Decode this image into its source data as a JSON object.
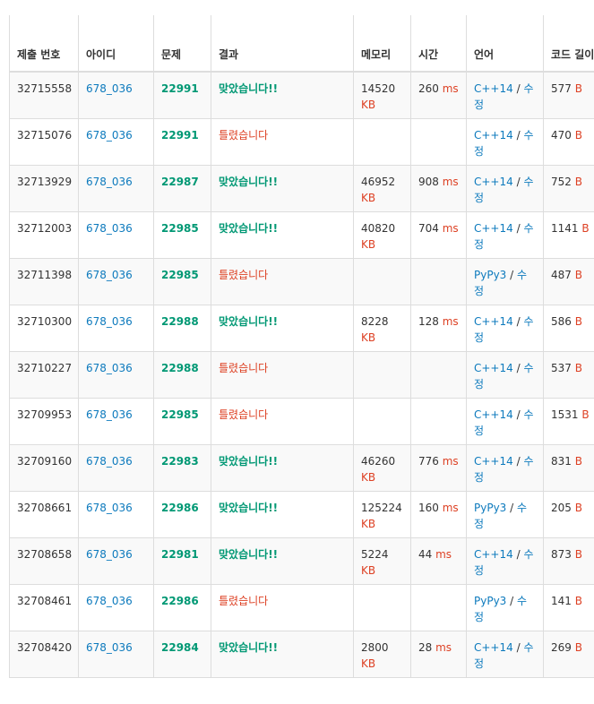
{
  "headers": [
    "제출 번호",
    "아이디",
    "문제",
    "결과",
    "메모리",
    "시간",
    "언어",
    "코드 길이"
  ],
  "units": {
    "memory": "KB",
    "time": "ms",
    "length": "B"
  },
  "edit_label": "수정",
  "rows": [
    {
      "id": "32715558",
      "user": "678_036",
      "problem": "22991",
      "result": "맞았습니다!!",
      "status": "ac",
      "memory": "14520",
      "time": "260",
      "lang": "C++14",
      "length": "577"
    },
    {
      "id": "32715076",
      "user": "678_036",
      "problem": "22991",
      "result": "틀렸습니다",
      "status": "wa",
      "memory": "",
      "time": "",
      "lang": "C++14",
      "length": "470"
    },
    {
      "id": "32713929",
      "user": "678_036",
      "problem": "22987",
      "result": "맞았습니다!!",
      "status": "ac",
      "memory": "46952",
      "time": "908",
      "lang": "C++14",
      "length": "752"
    },
    {
      "id": "32712003",
      "user": "678_036",
      "problem": "22985",
      "result": "맞았습니다!!",
      "status": "ac",
      "memory": "40820",
      "time": "704",
      "lang": "C++14",
      "length": "1141"
    },
    {
      "id": "32711398",
      "user": "678_036",
      "problem": "22985",
      "result": "틀렸습니다",
      "status": "wa",
      "memory": "",
      "time": "",
      "lang": "PyPy3",
      "length": "487"
    },
    {
      "id": "32710300",
      "user": "678_036",
      "problem": "22988",
      "result": "맞았습니다!!",
      "status": "ac",
      "memory": "8228",
      "time": "128",
      "lang": "C++14",
      "length": "586"
    },
    {
      "id": "32710227",
      "user": "678_036",
      "problem": "22988",
      "result": "틀렸습니다",
      "status": "wa",
      "memory": "",
      "time": "",
      "lang": "C++14",
      "length": "537"
    },
    {
      "id": "32709953",
      "user": "678_036",
      "problem": "22985",
      "result": "틀렸습니다",
      "status": "wa",
      "memory": "",
      "time": "",
      "lang": "C++14",
      "length": "1531"
    },
    {
      "id": "32709160",
      "user": "678_036",
      "problem": "22983",
      "result": "맞았습니다!!",
      "status": "ac",
      "memory": "46260",
      "time": "776",
      "lang": "C++14",
      "length": "831"
    },
    {
      "id": "32708661",
      "user": "678_036",
      "problem": "22986",
      "result": "맞았습니다!!",
      "status": "ac",
      "memory": "125224",
      "time": "160",
      "lang": "PyPy3",
      "length": "205"
    },
    {
      "id": "32708658",
      "user": "678_036",
      "problem": "22981",
      "result": "맞았습니다!!",
      "status": "ac",
      "memory": "5224",
      "time": "44",
      "lang": "C++14",
      "length": "873"
    },
    {
      "id": "32708461",
      "user": "678_036",
      "problem": "22986",
      "result": "틀렸습니다",
      "status": "wa",
      "memory": "",
      "time": "",
      "lang": "PyPy3",
      "length": "141"
    },
    {
      "id": "32708420",
      "user": "678_036",
      "problem": "22984",
      "result": "맞았습니다!!",
      "status": "ac",
      "memory": "2800",
      "time": "28",
      "lang": "C++14",
      "length": "269"
    }
  ]
}
